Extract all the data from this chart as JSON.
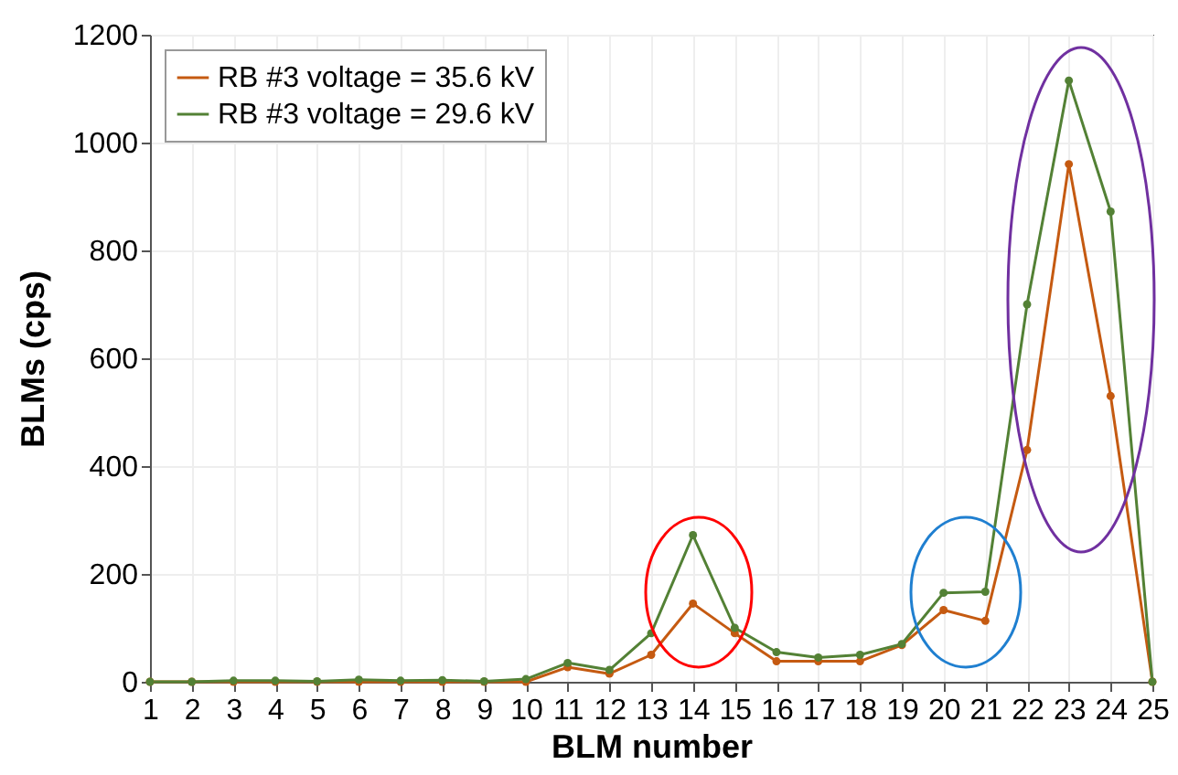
{
  "chart_data": {
    "type": "line",
    "xlabel": "BLM number",
    "ylabel": "BLMs (cps)",
    "x": [
      1,
      2,
      3,
      4,
      5,
      6,
      7,
      8,
      9,
      10,
      11,
      12,
      13,
      14,
      15,
      16,
      17,
      18,
      19,
      20,
      21,
      22,
      23,
      24,
      25
    ],
    "series": [
      {
        "name": "RB #3 voltage = 35.6 kV",
        "color": "#c55a11",
        "values": [
          0,
          0,
          0,
          0,
          0,
          0,
          0,
          0,
          0,
          0,
          27,
          15,
          50,
          145,
          90,
          38,
          38,
          38,
          68,
          133,
          113,
          430,
          960,
          530,
          0
        ]
      },
      {
        "name": "RB #3 voltage = 29.6 kV",
        "color": "#538135",
        "values": [
          0,
          0,
          2,
          2,
          1,
          4,
          2,
          3,
          1,
          5,
          35,
          22,
          90,
          272,
          100,
          55,
          45,
          50,
          70,
          165,
          167,
          700,
          1115,
          872,
          0
        ]
      }
    ],
    "xlim": [
      1,
      25
    ],
    "xticks": [
      1,
      2,
      3,
      4,
      5,
      6,
      7,
      8,
      9,
      10,
      11,
      12,
      13,
      14,
      15,
      16,
      17,
      18,
      19,
      20,
      21,
      22,
      23,
      24,
      25
    ],
    "ylim": [
      0,
      1200
    ],
    "yticks": [
      0,
      200,
      400,
      600,
      800,
      1000,
      1200
    ],
    "grid": true,
    "legend": "top left",
    "marker": "circle",
    "line_style": "solid"
  }
}
